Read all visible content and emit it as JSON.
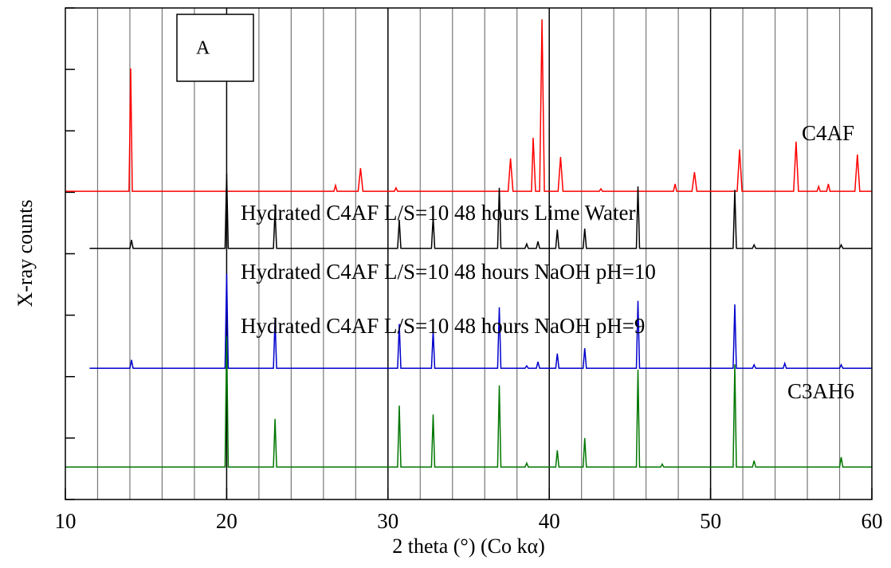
{
  "chart_data": {
    "type": "line",
    "xlabel": "2 theta (°) (Co kα)",
    "ylabel": "X-ray counts",
    "xlim": [
      10,
      60
    ],
    "xticks": [
      10,
      20,
      30,
      40,
      50,
      60
    ],
    "xgrid": [
      12,
      14,
      16,
      18,
      20,
      22,
      24,
      26,
      28,
      30,
      32,
      34,
      36,
      38,
      40,
      42,
      44,
      46,
      48,
      50,
      52,
      54,
      56,
      58
    ],
    "ylim": [
      0,
      100
    ],
    "yticks": [
      0,
      12.5,
      25,
      37.5,
      50,
      62.5,
      75,
      87.5,
      100
    ],
    "annotations": [
      "A",
      "C4AF",
      "Hydrated C4AF L/S=10 48 hours Lime Water",
      "Hydrated C4AF L/S=10 48 hours NaOH pH=10",
      "Hydrated C4AF L/S=10 48 hours NaOH pH=9",
      "C3AH6"
    ],
    "series": [
      {
        "color": "#ff0000",
        "x": [
          10,
          13.95,
          14.05,
          14.15,
          26.65,
          26.75,
          26.85,
          28.15,
          28.3,
          28.45,
          30.4,
          30.5,
          30.6,
          37.45,
          37.6,
          37.75,
          38.9,
          39.0,
          39.15,
          39.4,
          39.55,
          39.7,
          40.55,
          40.7,
          40.85,
          43.1,
          43.2,
          43.3,
          47.7,
          47.8,
          47.9,
          48.85,
          49.0,
          49.15,
          51.65,
          51.8,
          51.95,
          55.15,
          55.3,
          55.45,
          56.6,
          56.7,
          56.8,
          57.2,
          57.3,
          57.4,
          58.95,
          59.1,
          59.25,
          60
        ],
        "values": [
          62.7,
          62.7,
          87.7,
          62.7,
          62.7,
          63.9,
          62.7,
          62.7,
          67.4,
          62.7,
          62.7,
          63.4,
          62.7,
          62.7,
          69.4,
          62.7,
          62.7,
          73.6,
          62.7,
          62.7,
          97.7,
          62.7,
          62.7,
          69.7,
          62.7,
          62.7,
          63.2,
          62.7,
          62.7,
          64.2,
          62.7,
          62.7,
          66.6,
          62.7,
          62.7,
          71.2,
          62.7,
          62.7,
          72.8,
          62.7,
          62.7,
          63.7,
          62.7,
          62.7,
          64.2,
          62.7,
          62.7,
          70.2,
          62.7,
          62.7
        ]
      },
      {
        "color": "#000000",
        "x": [
          11.5,
          14.0,
          14.1,
          14.2,
          19.9,
          20.0,
          20.1,
          22.9,
          23.0,
          23.1,
          30.6,
          30.7,
          30.8,
          32.7,
          32.8,
          32.9,
          36.8,
          36.9,
          37.0,
          38.5,
          38.6,
          38.7,
          39.2,
          39.3,
          39.4,
          40.4,
          40.5,
          40.6,
          42.1,
          42.2,
          42.3,
          45.4,
          45.5,
          45.6,
          51.4,
          51.5,
          51.6,
          52.6,
          52.7,
          52.8,
          58.0,
          58.1,
          58.2,
          60
        ],
        "values": [
          51.1,
          51.1,
          52.8,
          51.1,
          51.1,
          66.3,
          51.1,
          51.1,
          58.8,
          51.1,
          51.1,
          56.9,
          51.1,
          51.1,
          57.5,
          51.1,
          51.1,
          63.4,
          51.1,
          51.1,
          52.0,
          51.1,
          51.1,
          52.5,
          51.1,
          51.1,
          54.9,
          51.1,
          51.1,
          55.1,
          51.1,
          51.1,
          63.7,
          51.1,
          51.1,
          63.0,
          51.1,
          51.1,
          51.8,
          51.1,
          51.1,
          51.8,
          51.1,
          51.1
        ]
      },
      {
        "color": "#0000cc",
        "x": [
          11.5,
          14.0,
          14.1,
          14.2,
          19.9,
          20.0,
          20.1,
          22.9,
          23.0,
          23.1,
          30.6,
          30.7,
          30.8,
          32.7,
          32.8,
          32.9,
          36.8,
          36.9,
          37.0,
          38.5,
          38.6,
          38.7,
          39.2,
          39.3,
          39.4,
          40.4,
          40.5,
          40.6,
          42.1,
          42.2,
          42.3,
          45.4,
          45.5,
          45.6,
          51.4,
          51.5,
          51.6,
          52.6,
          52.7,
          52.8,
          54.5,
          54.6,
          54.7,
          58.0,
          58.1,
          58.2,
          60
        ],
        "values": [
          26.7,
          26.7,
          28.4,
          26.7,
          26.7,
          45.9,
          26.7,
          26.7,
          36.6,
          26.7,
          26.7,
          35.7,
          26.7,
          26.7,
          34.4,
          26.7,
          26.7,
          39.1,
          26.7,
          26.7,
          27.2,
          26.7,
          26.7,
          28.0,
          26.7,
          26.7,
          29.7,
          26.7,
          26.7,
          30.8,
          26.7,
          26.7,
          40.4,
          26.7,
          26.7,
          39.7,
          26.7,
          26.7,
          27.4,
          26.7,
          26.7,
          27.7,
          26.7,
          26.7,
          27.4,
          26.7,
          26.7
        ]
      },
      {
        "color": "#007700",
        "x": [
          10,
          19.9,
          20.0,
          20.1,
          22.9,
          23.0,
          23.1,
          30.6,
          30.7,
          30.8,
          32.7,
          32.8,
          32.9,
          36.8,
          36.9,
          37.0,
          38.5,
          38.6,
          38.7,
          40.4,
          40.5,
          40.6,
          42.1,
          42.2,
          42.3,
          45.4,
          45.5,
          45.6,
          46.9,
          47.0,
          47.1,
          51.4,
          51.5,
          51.6,
          52.6,
          52.7,
          52.8,
          58.0,
          58.1,
          58.2,
          60
        ],
        "values": [
          6.6,
          6.6,
          33.2,
          6.6,
          6.6,
          16.4,
          6.6,
          6.6,
          19.1,
          6.6,
          6.6,
          17.3,
          6.6,
          6.6,
          23.2,
          6.6,
          6.6,
          7.4,
          6.6,
          6.6,
          10.0,
          6.6,
          6.6,
          12.5,
          6.6,
          6.6,
          26.4,
          6.6,
          6.6,
          7.2,
          6.6,
          6.6,
          27.5,
          6.6,
          6.6,
          7.9,
          6.6,
          6.6,
          8.6,
          6.6,
          6.6
        ]
      }
    ]
  }
}
